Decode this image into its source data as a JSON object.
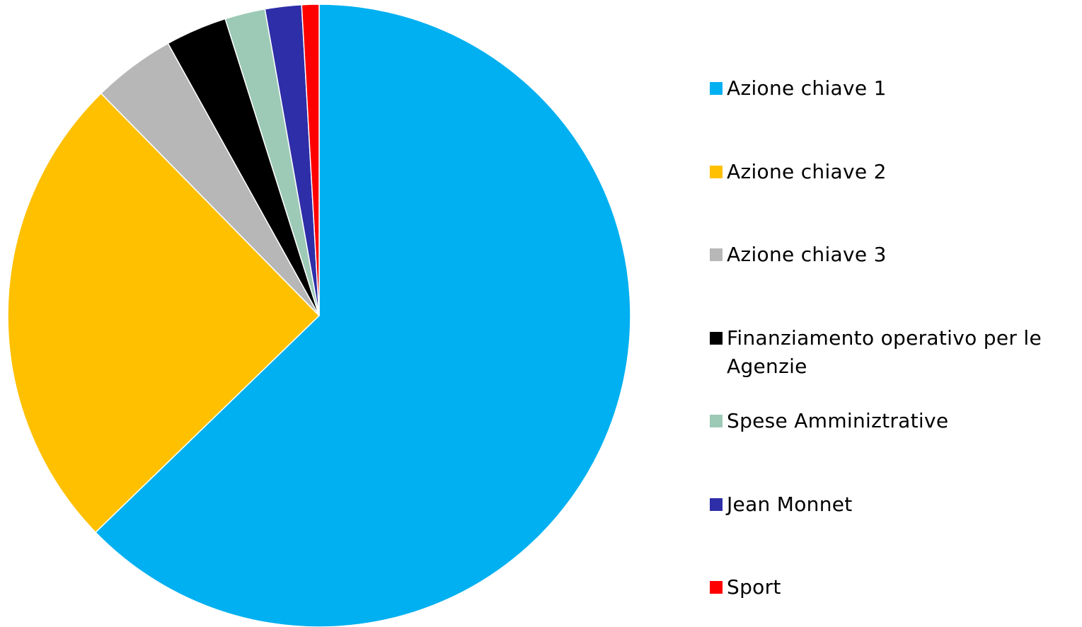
{
  "chart_data": {
    "type": "pie",
    "title": "",
    "categories": [
      "Azione chiave 1",
      "Azione chiave 2",
      "Azione chiave 3",
      "Finanziamento operativo per le Agenzie",
      "Spese Amminiztrative",
      "Jean Monnet",
      "Sport"
    ],
    "values": [
      63.0,
      25.0,
      4.3,
      3.2,
      2.1,
      1.9,
      0.9
    ],
    "unit": "%",
    "colors": [
      "#00b0f0",
      "#ffc000",
      "#b7b7b7",
      "#000000",
      "#9ccab6",
      "#2e2ea8",
      "#ff0000"
    ],
    "start_angle": "12 o'clock",
    "direction": "clockwise",
    "legend_position": "right",
    "data_labels": false
  }
}
